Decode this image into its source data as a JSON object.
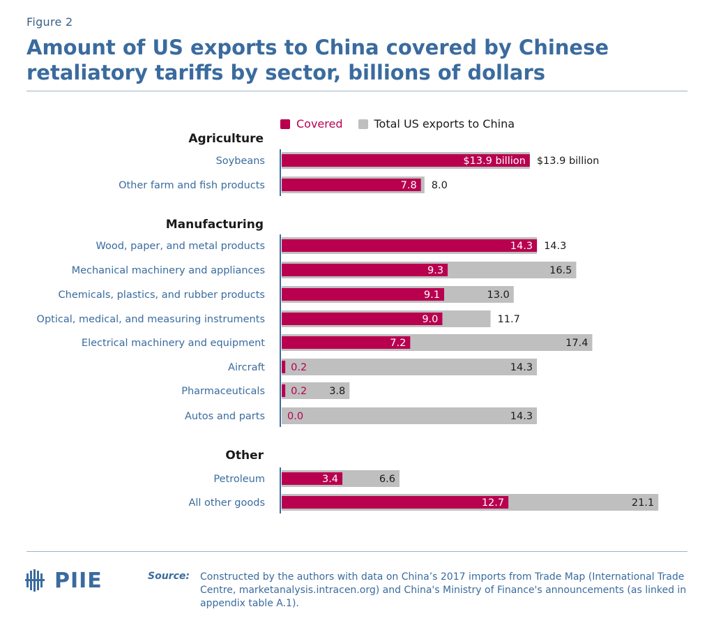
{
  "figure_label": "Figure 2",
  "title": "Amount of US exports to China covered by Chinese retaliatory tariffs by sector, billions of dollars",
  "colors": {
    "covered": "#b8004f",
    "total": "#bfbfbf",
    "label_text": "#3a6b9e",
    "group_text": "#1a1a1a"
  },
  "legend": {
    "covered_label": "Covered",
    "total_label": "Total US exports to China"
  },
  "chart_data": {
    "type": "bar",
    "orientation": "horizontal",
    "title": "Amount of US exports to China covered by Chinese retaliatory tariffs by sector, billions of dollars",
    "series": [
      {
        "name": "Covered",
        "key": "covered"
      },
      {
        "name": "Total US exports to China",
        "key": "total"
      }
    ],
    "groups": [
      {
        "name": "Agriculture",
        "items": [
          {
            "label": "Soybeans",
            "covered": 13.9,
            "total": 13.9,
            "covered_text": "$13.9 billion",
            "total_text": "$13.9 billion"
          },
          {
            "label": "Other farm and fish products",
            "covered": 7.8,
            "total": 8.0,
            "covered_text": "7.8",
            "total_text": "8.0"
          }
        ]
      },
      {
        "name": "Manufacturing",
        "items": [
          {
            "label": "Wood, paper, and metal products",
            "covered": 14.3,
            "total": 14.3,
            "covered_text": "14.3",
            "total_text": "14.3"
          },
          {
            "label": "Mechanical machinery and appliances",
            "covered": 9.3,
            "total": 16.5,
            "covered_text": "9.3",
            "total_text": "16.5"
          },
          {
            "label": "Chemicals, plastics, and rubber products",
            "covered": 9.1,
            "total": 13.0,
            "covered_text": "9.1",
            "total_text": "13.0"
          },
          {
            "label": "Optical, medical, and measuring instruments",
            "covered": 9.0,
            "total": 11.7,
            "covered_text": "9.0",
            "total_text": "11.7"
          },
          {
            "label": "Electrical machinery and equipment",
            "covered": 7.2,
            "total": 17.4,
            "covered_text": "7.2",
            "total_text": "17.4"
          },
          {
            "label": "Aircraft",
            "covered": 0.2,
            "total": 14.3,
            "covered_text": "0.2",
            "total_text": "14.3"
          },
          {
            "label": "Pharmaceuticals",
            "covered": 0.2,
            "total": 3.8,
            "covered_text": "0.2",
            "total_text": "3.8"
          },
          {
            "label": "Autos and parts",
            "covered": 0.0,
            "total": 14.3,
            "covered_text": "0.0",
            "total_text": "14.3"
          }
        ]
      },
      {
        "name": "Other",
        "items": [
          {
            "label": "Petroleum",
            "covered": 3.4,
            "total": 6.6,
            "covered_text": "3.4",
            "total_text": "6.6"
          },
          {
            "label": "All other goods",
            "covered": 12.7,
            "total": 21.1,
            "covered_text": "12.7",
            "total_text": "21.1"
          }
        ]
      }
    ],
    "xlim": [
      0,
      21.1
    ],
    "legend_position": "top",
    "grid": false
  },
  "logo_text": "PIIE",
  "source_label": "Source:",
  "source_text": "Constructed by the authors with data on China’s 2017 imports from Trade Map (International Trade Centre, marketanalysis.intracen.org) and China's Ministry of Finance's announcements (as linked in appendix table A.1)."
}
